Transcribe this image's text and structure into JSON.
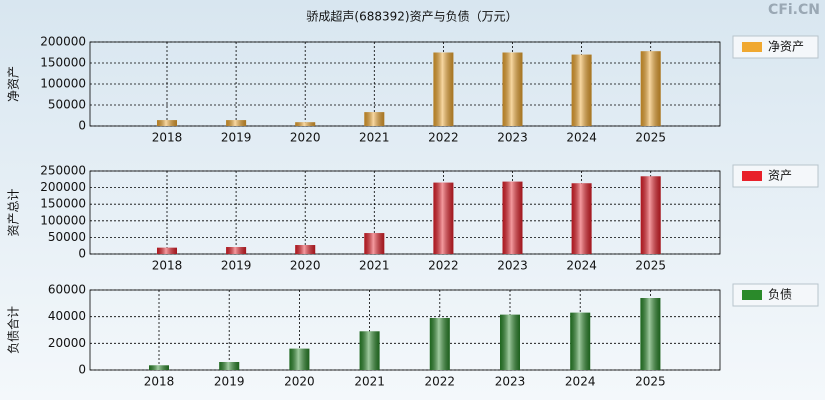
{
  "title": "骄成超声(688392)资产与负债（万元）",
  "watermark": "CFi.CN",
  "chart_data": [
    {
      "type": "bar",
      "y_label": "净资产",
      "categories": [
        "2018",
        "2019",
        "2020",
        "2021",
        "2022",
        "2023",
        "2024",
        "2025"
      ],
      "series": [
        {
          "name": "净资产",
          "color": "#f0a830",
          "values": [
            14000,
            14000,
            9000,
            33000,
            175000,
            175000,
            170000,
            178000
          ]
        }
      ],
      "ylim": [
        0,
        200000
      ],
      "yticks": [
        0,
        50000,
        100000,
        150000,
        200000
      ],
      "grid": true
    },
    {
      "type": "bar",
      "y_label": "资产总计",
      "categories": [
        "2018",
        "2019",
        "2020",
        "2021",
        "2022",
        "2023",
        "2024",
        "2025"
      ],
      "series": [
        {
          "name": "资产",
          "color": "#e8202a",
          "values": [
            19000,
            21000,
            27000,
            63000,
            215000,
            218000,
            213000,
            234000
          ]
        }
      ],
      "ylim": [
        0,
        250000
      ],
      "yticks": [
        0,
        50000,
        100000,
        150000,
        200000,
        250000
      ],
      "grid": true
    },
    {
      "type": "bar",
      "y_label": "负债合计",
      "categories": [
        "2018",
        "2019",
        "2020",
        "2021",
        "2022",
        "2023",
        "2024",
        "2025"
      ],
      "series": [
        {
          "name": "负债",
          "color": "#2a8a2a",
          "values": [
            3500,
            6000,
            16000,
            29000,
            39000,
            41500,
            43000,
            54000
          ]
        }
      ],
      "ylim": [
        0,
        60000
      ],
      "yticks": [
        0,
        20000,
        40000,
        60000
      ],
      "grid": true
    }
  ]
}
